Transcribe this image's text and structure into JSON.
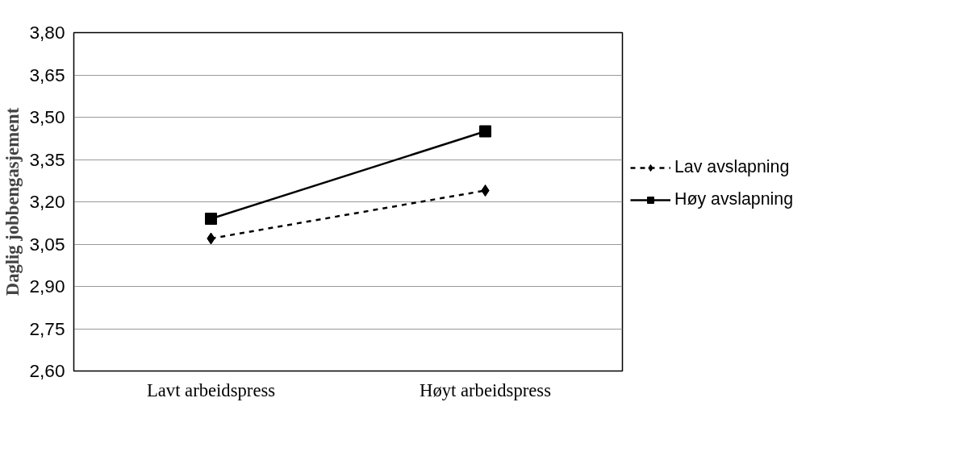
{
  "chart_data": {
    "type": "line",
    "ylabel": "Daglig jobbengasjement",
    "categories": [
      "Lavt arbeidspress",
      "Høyt arbeidspress"
    ],
    "series": [
      {
        "name": "Lav avslapning",
        "color": "#000000",
        "values": [
          3.07,
          3.24
        ],
        "marker": "diamond",
        "line_style": "dashed"
      },
      {
        "name": "Høy avslapning",
        "color": "#000000",
        "values": [
          3.14,
          3.45
        ],
        "marker": "square",
        "line_style": "solid"
      }
    ],
    "ylim": [
      2.6,
      3.8
    ],
    "yticks": [
      {
        "value": 2.6,
        "label": "2,60"
      },
      {
        "value": 2.75,
        "label": "2,75"
      },
      {
        "value": 2.9,
        "label": "2,90"
      },
      {
        "value": 3.05,
        "label": "3,05"
      },
      {
        "value": 3.2,
        "label": "3,20"
      },
      {
        "value": 3.35,
        "label": "3,35"
      },
      {
        "value": 3.5,
        "label": "3,50"
      },
      {
        "value": 3.65,
        "label": "3,65"
      },
      {
        "value": 3.8,
        "label": "3,80"
      }
    ],
    "grid": "y",
    "legend": "right"
  }
}
